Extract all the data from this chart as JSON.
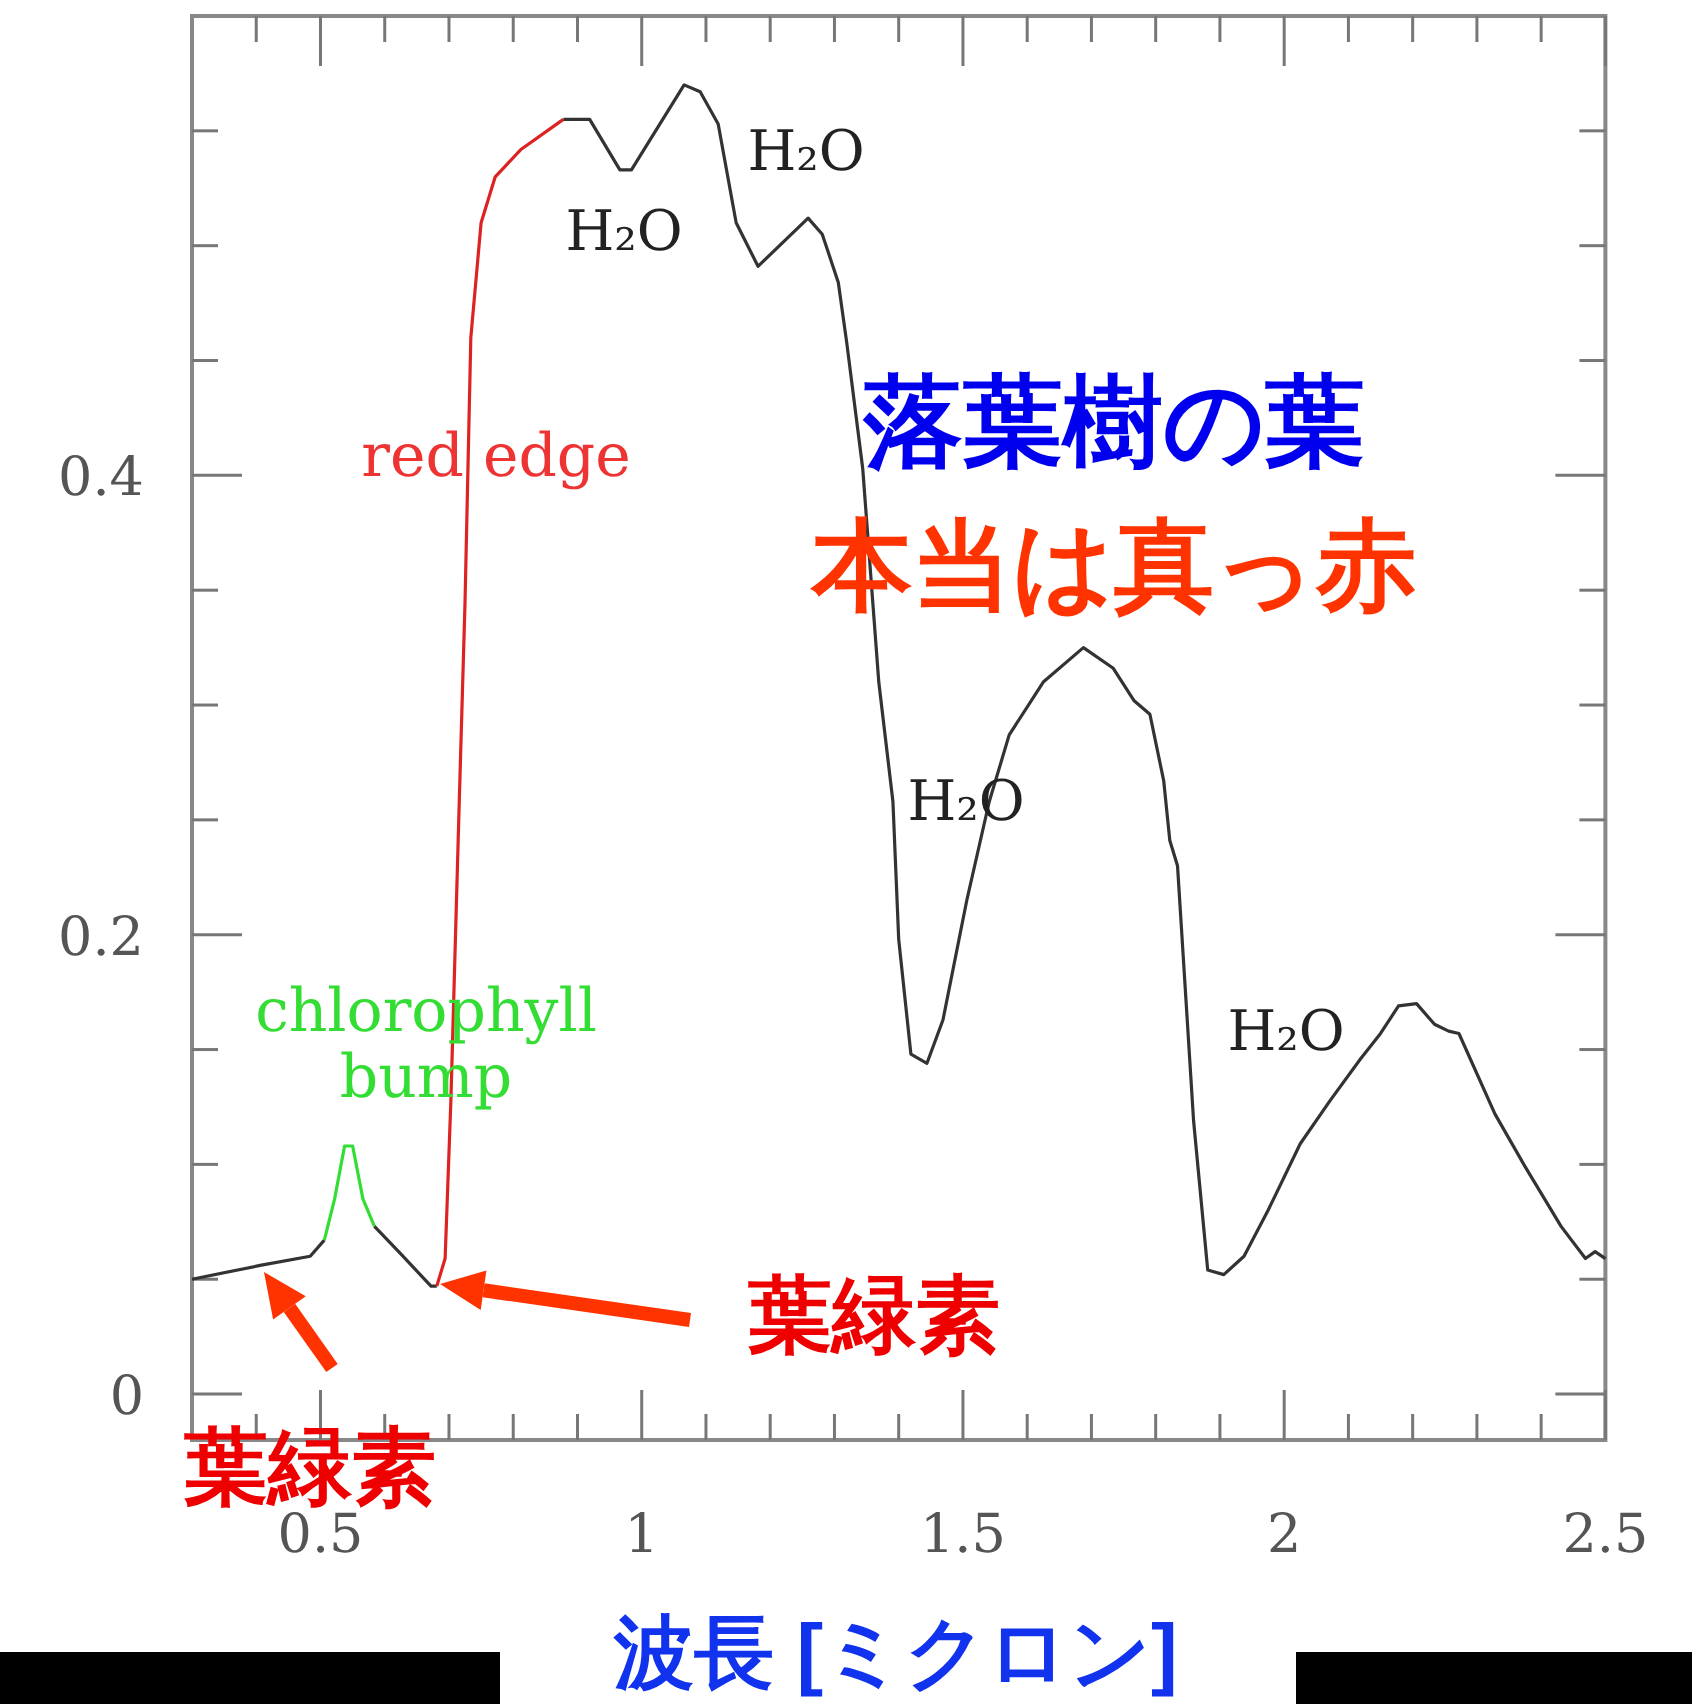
{
  "chart_data": {
    "type": "line",
    "xlabel": "波長 [ミクロン]",
    "xlim": [
      0.3,
      2.5
    ],
    "ylim": [
      -0.02,
      0.6
    ],
    "xticks": [
      {
        "value": 0.4,
        "label": null
      },
      0.5,
      {
        "value": 0.6,
        "label": null
      },
      {
        "value": 0.7,
        "label": null
      },
      {
        "value": 0.8,
        "label": null
      },
      {
        "value": 0.9,
        "label": null
      },
      1,
      {
        "value": 1.1,
        "label": null
      },
      {
        "value": 1.2,
        "label": null
      },
      {
        "value": 1.3,
        "label": null
      },
      {
        "value": 1.4,
        "label": null
      },
      1.5,
      {
        "value": 1.6,
        "label": null
      },
      {
        "value": 1.7,
        "label": null
      },
      {
        "value": 1.8,
        "label": null
      },
      {
        "value": 1.9,
        "label": null
      },
      2,
      {
        "value": 2.1,
        "label": null
      },
      {
        "value": 2.2,
        "label": null
      },
      {
        "value": 2.3,
        "label": null
      },
      {
        "value": 2.4,
        "label": null
      },
      2.5
    ],
    "yticks": [
      0,
      {
        "value": 0.05,
        "label": null
      },
      {
        "value": 0.1,
        "label": null
      },
      {
        "value": 0.15,
        "label": null
      },
      0.2,
      {
        "value": 0.25,
        "label": null
      },
      {
        "value": 0.3,
        "label": null
      },
      {
        "value": 0.35,
        "label": null
      },
      0.4,
      {
        "value": 0.45,
        "label": null
      },
      {
        "value": 0.5,
        "label": null
      },
      {
        "value": 0.55,
        "label": null
      }
    ],
    "grid": false,
    "line_style": "solid",
    "marker": "none",
    "series": [
      {
        "color": "#333333",
        "x": [
          0.3,
          0.406,
          0.484,
          0.506
        ],
        "values": [
          0.05,
          0.056,
          0.06,
          0.067
        ]
      },
      {
        "color": "#33dd33",
        "x": [
          0.506,
          0.522,
          0.5375,
          0.55,
          0.566,
          0.584
        ],
        "values": [
          0.067,
          0.085,
          0.108,
          0.108,
          0.085,
          0.073
        ]
      },
      {
        "color": "#333333",
        "x": [
          0.584,
          0.625,
          0.672,
          0.681
        ],
        "values": [
          0.073,
          0.061,
          0.047,
          0.047
        ]
      },
      {
        "color": "#dd2222",
        "x": [
          0.681,
          0.694,
          0.703,
          0.716,
          0.725,
          0.734,
          0.75,
          0.772,
          0.8125,
          0.878
        ],
        "values": [
          0.047,
          0.059,
          0.128,
          0.258,
          0.345,
          0.46,
          0.51,
          0.53,
          0.542,
          0.555
        ]
      },
      {
        "color": "#333333",
        "x": [
          0.878,
          0.919,
          0.966,
          0.984,
          1.066,
          1.091,
          1.119,
          1.147,
          1.181,
          1.259,
          1.281,
          1.306,
          1.319,
          1.344,
          1.369,
          1.391,
          1.4,
          1.419,
          1.444,
          1.469,
          1.506,
          1.541,
          1.572,
          1.625,
          1.6875,
          1.734,
          1.766,
          1.791,
          1.8125,
          1.822,
          1.834,
          1.859,
          1.881,
          1.906,
          1.9375,
          1.975,
          2.025,
          2.072,
          2.119,
          2.15,
          2.178,
          2.206,
          2.234,
          2.256,
          2.272,
          2.328,
          2.375,
          2.431,
          2.469,
          2.484,
          2.5
        ],
        "values": [
          0.555,
          0.555,
          0.533,
          0.533,
          0.57,
          0.567,
          0.553,
          0.51,
          0.491,
          0.512,
          0.505,
          0.484,
          0.458,
          0.403,
          0.31,
          0.258,
          0.198,
          0.148,
          0.144,
          0.163,
          0.215,
          0.258,
          0.287,
          0.31,
          0.325,
          0.316,
          0.302,
          0.296,
          0.267,
          0.241,
          0.23,
          0.119,
          0.054,
          0.052,
          0.06,
          0.08,
          0.109,
          0.128,
          0.146,
          0.157,
          0.169,
          0.17,
          0.161,
          0.158,
          0.157,
          0.122,
          0.099,
          0.073,
          0.059,
          0.062,
          0.059
        ]
      }
    ],
    "annotations": [
      "red edge",
      "chlorophyll\nbump",
      "H₂O",
      "H₂O",
      "H₂O",
      "H₂O",
      "落葉樹の葉",
      "本当は真っ赤",
      "葉緑素",
      "葉緑素"
    ]
  }
}
